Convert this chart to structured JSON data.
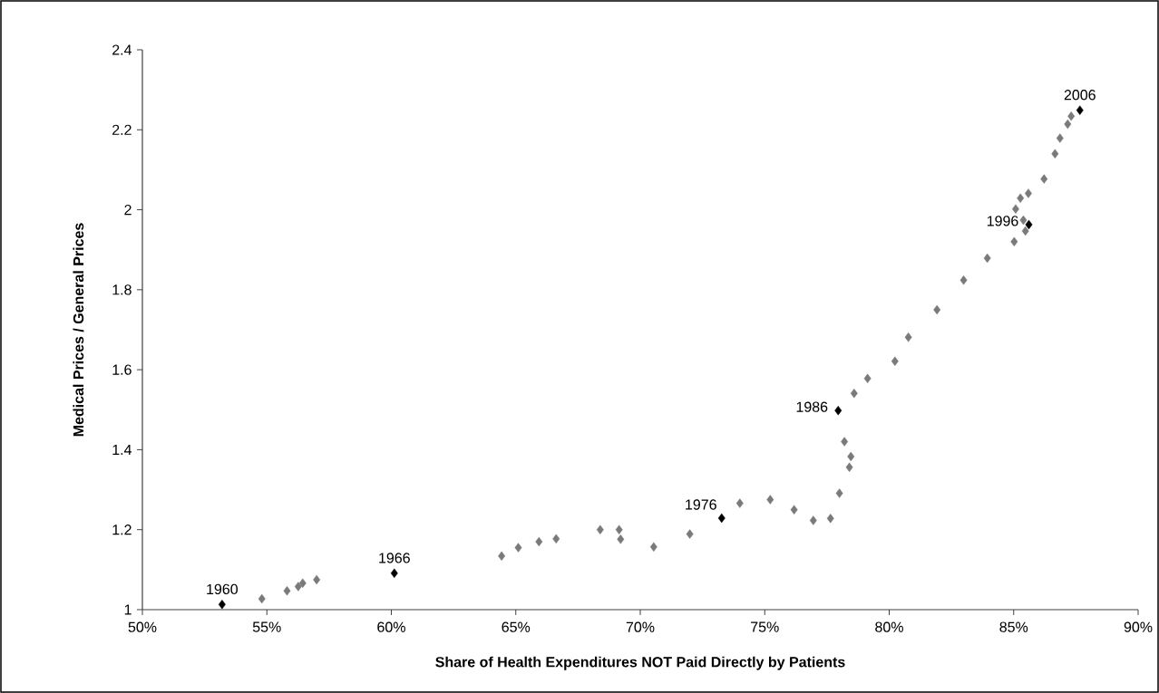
{
  "chart_data": {
    "type": "scatter",
    "xlabel": "Share of Health Expenditures NOT Paid Directly by Patients",
    "ylabel": "Medical Prices / General Prices",
    "marker": "diamond",
    "xlim": [
      50,
      90
    ],
    "ylim": [
      1,
      2.4
    ],
    "xticks": [
      {
        "value": 50,
        "label": "50%"
      },
      {
        "value": 55,
        "label": "55%"
      },
      {
        "value": 60,
        "label": "60%"
      },
      {
        "value": 65,
        "label": "65%"
      },
      {
        "value": 70,
        "label": "70%"
      },
      {
        "value": 75,
        "label": "75%"
      },
      {
        "value": 80,
        "label": "80%"
      },
      {
        "value": 85,
        "label": "85%"
      },
      {
        "value": 90,
        "label": "90%"
      }
    ],
    "yticks": [
      1,
      1.2,
      1.4,
      1.6,
      1.8,
      2,
      2.2,
      2.4
    ],
    "series": [
      {
        "color": "#7a7a7a",
        "x": [
          54.8,
          55.81,
          56.26,
          56.44,
          57.0,
          64.43,
          65.1,
          65.93,
          66.62,
          68.39,
          69.15,
          69.21,
          70.54,
          71.99,
          74.0,
          75.22,
          76.18,
          76.95,
          77.64,
          78.0,
          78.4,
          78.46,
          78.2,
          78.59,
          79.13,
          80.23,
          80.77,
          81.92,
          82.99,
          83.94,
          85.02,
          85.47,
          85.39,
          85.08,
          85.27,
          85.59,
          86.22,
          86.66,
          86.86,
          87.17,
          87.31
        ],
        "values": [
          1.027,
          1.047,
          1.058,
          1.066,
          1.075,
          1.134,
          1.155,
          1.17,
          1.177,
          1.2,
          1.2,
          1.176,
          1.157,
          1.189,
          1.266,
          1.275,
          1.25,
          1.223,
          1.228,
          1.291,
          1.356,
          1.383,
          1.42,
          1.541,
          1.578,
          1.621,
          1.681,
          1.75,
          1.824,
          1.879,
          1.92,
          1.947,
          1.974,
          2.002,
          2.029,
          2.041,
          2.077,
          2.14,
          2.179,
          2.214,
          2.234
        ]
      },
      {
        "color": "#000000",
        "x": [
          53.2,
          60.12,
          73.27,
          77.95,
          85.61,
          87.66
        ],
        "values": [
          1.013,
          1.091,
          1.229,
          1.498,
          1.963,
          2.249
        ]
      }
    ],
    "annotations": [
      {
        "text": "1960",
        "x": 53.2,
        "y": 1.013
      },
      {
        "text": "1966",
        "x": 60.12,
        "y": 1.091
      },
      {
        "text": "1976",
        "x": 73.27,
        "y": 1.229
      },
      {
        "text": "1986",
        "x": 77.95,
        "y": 1.498
      },
      {
        "text": "1996",
        "x": 85.61,
        "y": 1.963
      },
      {
        "text": "2006",
        "x": 87.66,
        "y": 2.249
      }
    ]
  }
}
